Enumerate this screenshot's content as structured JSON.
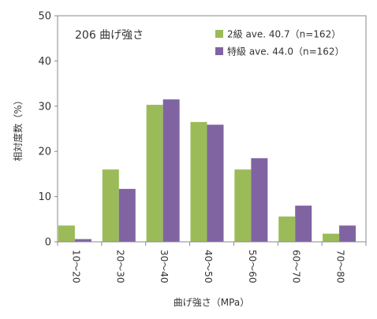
{
  "chart_data": {
    "type": "bar",
    "title": "206 曲げ強さ",
    "xlabel": "曲げ強さ（MPa）",
    "ylabel": "相対度数（%）",
    "ylim": [
      0,
      50
    ],
    "yticks": [
      "0",
      "10",
      "20",
      "30",
      "40",
      "50"
    ],
    "grid": false,
    "legend_position": "top-right",
    "categories": [
      "10～20",
      "20～30",
      "30～40",
      "40～50",
      "50～60",
      "60～70",
      "70～80"
    ],
    "series": [
      {
        "name": "2級 ave. 40.7（n=162）",
        "color": "#9bbb59",
        "values": [
          3.6,
          16.0,
          30.3,
          26.5,
          16.0,
          5.6,
          1.8
        ]
      },
      {
        "name": "特級 ave. 44.0（n=162）",
        "color": "#8064a2",
        "values": [
          0.6,
          11.7,
          31.5,
          25.9,
          18.5,
          8.0,
          3.6
        ]
      }
    ]
  }
}
